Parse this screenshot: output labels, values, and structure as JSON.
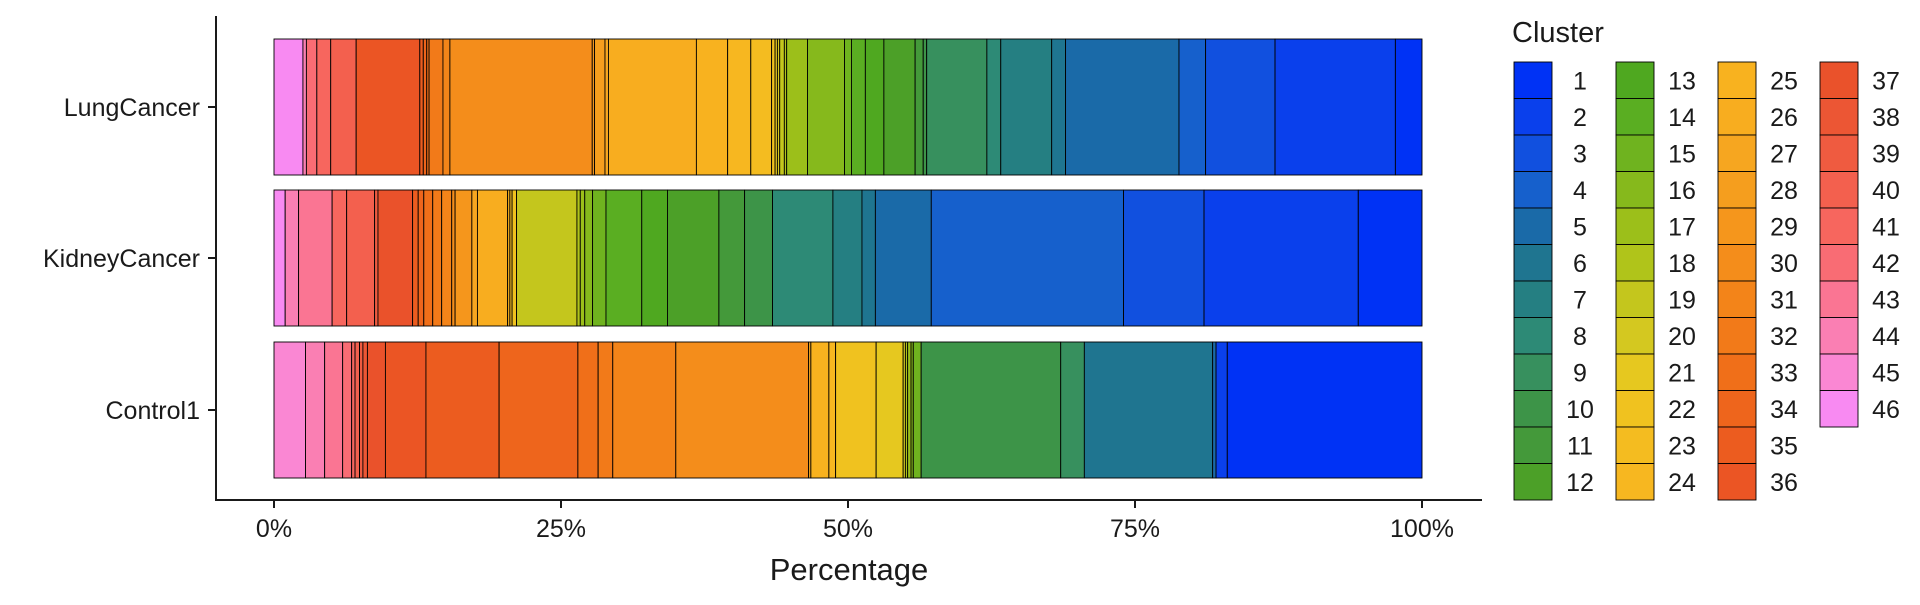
{
  "chart_data": {
    "type": "bar",
    "orientation": "horizontal",
    "stacked": true,
    "normalized": true,
    "xlabel": "Percentage",
    "ylabel": "",
    "xlim": [
      0,
      100
    ],
    "x_ticks": [
      "0%",
      "25%",
      "50%",
      "75%",
      "100%"
    ],
    "legend": {
      "title": "Cluster",
      "placement": "right",
      "columns": 4
    },
    "clusters": [
      "1",
      "2",
      "3",
      "4",
      "5",
      "6",
      "7",
      "8",
      "9",
      "10",
      "11",
      "12",
      "13",
      "14",
      "15",
      "16",
      "17",
      "18",
      "19",
      "20",
      "21",
      "22",
      "23",
      "24",
      "25",
      "26",
      "27",
      "28",
      "29",
      "30",
      "31",
      "32",
      "33",
      "34",
      "35",
      "36",
      "37",
      "38",
      "39",
      "40",
      "41",
      "42",
      "43",
      "44",
      "45",
      "46"
    ],
    "colors": [
      "#0032F5",
      "#0A40EC",
      "#1150DF",
      "#1660CC",
      "#1A6AA8",
      "#1F7590",
      "#257F82",
      "#2D8A76",
      "#37905E",
      "#3D9448",
      "#44993A",
      "#4CA028",
      "#4FA820",
      "#5AAE22",
      "#6FB31F",
      "#86B91C",
      "#9CBF1A",
      "#B0C41A",
      "#C4C61D",
      "#D4C820",
      "#E6C81F",
      "#F0C21F",
      "#F4BC20",
      "#F7B720",
      "#F8B21F",
      "#F8AD1F",
      "#F6A620",
      "#F59E1E",
      "#F5961C",
      "#F48D1B",
      "#F38419",
      "#F27A19",
      "#F06F19",
      "#EE651C",
      "#EC5C1F",
      "#EB5524",
      "#EA522B",
      "#EC5634",
      "#EF5B40",
      "#F3604E",
      "#F7665E",
      "#F96C74",
      "#FA7593",
      "#FA7FB3",
      "#FA87D3",
      "#F88AF2"
    ],
    "series": [
      {
        "name": "LungCancer",
        "segments": [
          [
            46,
            2.5
          ],
          [
            44,
            0.3
          ],
          [
            42,
            0.9
          ],
          [
            41,
            1.2
          ],
          [
            40,
            2.2
          ],
          [
            36,
            5.5
          ],
          [
            35,
            0.3
          ],
          [
            34,
            0.3
          ],
          [
            33,
            0.2
          ],
          [
            32,
            1.2
          ],
          [
            31,
            0.6
          ],
          [
            30,
            12.3
          ],
          [
            29,
            0.2
          ],
          [
            28,
            0.9
          ],
          [
            27,
            0.3
          ],
          [
            26,
            7.6
          ],
          [
            25,
            2.7
          ],
          [
            24,
            2.0
          ],
          [
            23,
            1.8
          ],
          [
            22,
            0.3
          ],
          [
            21,
            0.2
          ],
          [
            20,
            0.2
          ],
          [
            19,
            0.4
          ],
          [
            18,
            0.2
          ],
          [
            17,
            1.8
          ],
          [
            16,
            3.2
          ],
          [
            15,
            0.6
          ],
          [
            14,
            1.2
          ],
          [
            13,
            1.6
          ],
          [
            12,
            2.7
          ],
          [
            11,
            0.7
          ],
          [
            10,
            0.3
          ],
          [
            9,
            5.2
          ],
          [
            8,
            1.2
          ],
          [
            7,
            4.4
          ],
          [
            6,
            1.2
          ],
          [
            5,
            9.8
          ],
          [
            4,
            2.3
          ],
          [
            3,
            6.0
          ],
          [
            2,
            10.4
          ],
          [
            1,
            2.3
          ]
        ]
      },
      {
        "name": "KidneyCancer",
        "segments": [
          [
            46,
            1.0
          ],
          [
            44,
            1.2
          ],
          [
            43,
            3.0
          ],
          [
            41,
            1.3
          ],
          [
            40,
            2.5
          ],
          [
            39,
            0.3
          ],
          [
            37,
            3.1
          ],
          [
            35,
            0.5
          ],
          [
            34,
            0.5
          ],
          [
            33,
            0.8
          ],
          [
            32,
            0.8
          ],
          [
            31,
            0.9
          ],
          [
            30,
            0.3
          ],
          [
            29,
            1.5
          ],
          [
            27,
            0.5
          ],
          [
            26,
            2.7
          ],
          [
            25,
            0.2
          ],
          [
            23,
            0.2
          ],
          [
            22,
            0.4
          ],
          [
            19,
            5.4
          ],
          [
            18,
            0.3
          ],
          [
            17,
            0.4
          ],
          [
            16,
            0.7
          ],
          [
            15,
            1.2
          ],
          [
            14,
            3.2
          ],
          [
            13,
            2.3
          ],
          [
            12,
            4.6
          ],
          [
            11,
            2.3
          ],
          [
            10,
            2.5
          ],
          [
            8,
            5.4
          ],
          [
            7,
            2.6
          ],
          [
            6,
            1.2
          ],
          [
            5,
            5.0
          ],
          [
            4,
            17.2
          ],
          [
            3,
            7.2
          ],
          [
            2,
            13.8
          ],
          [
            1,
            5.7
          ]
        ]
      },
      {
        "name": "Control1",
        "segments": [
          [
            45,
            2.8
          ],
          [
            44,
            1.7
          ],
          [
            43,
            1.6
          ],
          [
            42,
            0.8
          ],
          [
            41,
            0.3
          ],
          [
            40,
            0.4
          ],
          [
            39,
            0.3
          ],
          [
            38,
            0.4
          ],
          [
            37,
            1.6
          ],
          [
            36,
            3.6
          ],
          [
            35,
            6.5
          ],
          [
            34,
            7.0
          ],
          [
            33,
            1.8
          ],
          [
            32,
            1.3
          ],
          [
            31,
            5.6
          ],
          [
            30,
            11.8
          ],
          [
            27,
            0.2
          ],
          [
            25,
            1.6
          ],
          [
            24,
            0.6
          ],
          [
            22,
            3.6
          ],
          [
            21,
            2.4
          ],
          [
            20,
            0.2
          ],
          [
            18,
            0.2
          ],
          [
            17,
            0.3
          ],
          [
            16,
            0.2
          ],
          [
            15,
            0.7
          ],
          [
            10,
            12.4
          ],
          [
            9,
            2.1
          ],
          [
            6,
            11.4
          ],
          [
            5,
            0.3
          ],
          [
            2,
            1.0
          ],
          [
            1,
            17.3
          ]
        ]
      }
    ]
  }
}
